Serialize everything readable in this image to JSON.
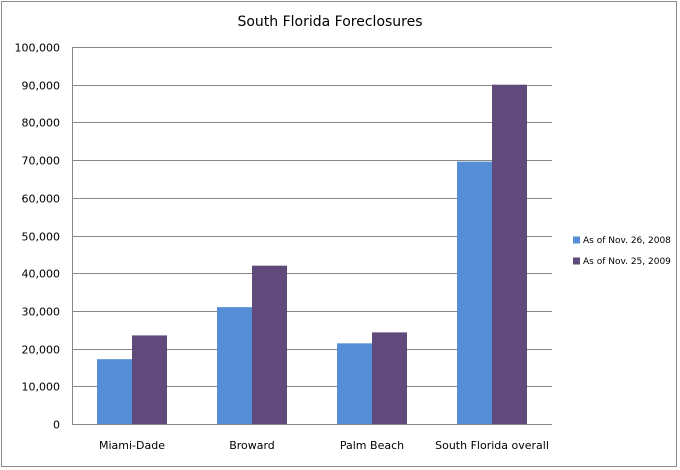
{
  "chart_data": {
    "type": "bar",
    "title": "South Florida Foreclosures",
    "xlabel": "",
    "ylabel": "",
    "categories": [
      "Miami-Dade",
      "Broward",
      "Palm Beach",
      "South Florida overall"
    ],
    "series": [
      {
        "name": "As of Nov. 26, 2008",
        "color": "#558ed5",
        "values": [
          17200,
          31000,
          21400,
          69600
        ]
      },
      {
        "name": "As of Nov. 25, 2009",
        "color": "#604a7b",
        "values": [
          23500,
          42000,
          24300,
          90000
        ]
      }
    ],
    "ylim": [
      0,
      100000
    ],
    "yticks": [
      "0",
      "10,000",
      "20,000",
      "30,000",
      "40,000",
      "50,000",
      "60,000",
      "70,000",
      "80,000",
      "90,000",
      "100,000"
    ],
    "grid": true,
    "legend_position": "right"
  }
}
